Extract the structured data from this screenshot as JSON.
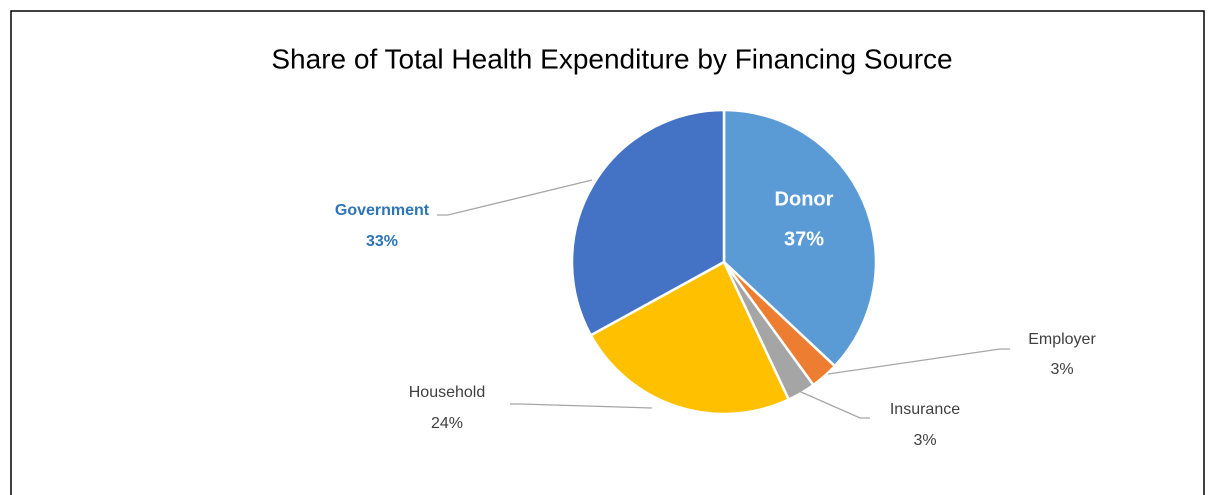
{
  "chart_data": {
    "type": "pie",
    "title": "Share of Total Health Expenditure by Financing Source",
    "categories": [
      "Donor",
      "Employer",
      "Insurance",
      "Household",
      "Government"
    ],
    "values": [
      37,
      3,
      3,
      24,
      33
    ],
    "value_labels": [
      "37%",
      "3%",
      "3%",
      "24%",
      "33%"
    ],
    "colors": [
      "#5b9bd5",
      "#ed7d31",
      "#a5a5a5",
      "#ffc000",
      "#4472c4"
    ]
  }
}
